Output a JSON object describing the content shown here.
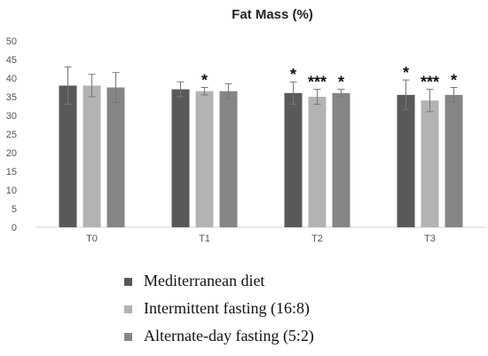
{
  "chart_data": {
    "type": "bar",
    "title": "Fat Mass (%)",
    "xlabel": "",
    "ylabel": "",
    "ylim": [
      0,
      50
    ],
    "yticks": [
      0,
      5,
      10,
      15,
      20,
      25,
      30,
      35,
      40,
      45,
      50
    ],
    "grid": false,
    "legend_position": "bottom",
    "categories": [
      "T0",
      "T1",
      "T2",
      "T3"
    ],
    "series": [
      {
        "name": "Mediterranean diet",
        "color": "#595959",
        "values": [
          38,
          37,
          36,
          35.5
        ],
        "errors": [
          5,
          2,
          3,
          4
        ],
        "significance": [
          "",
          "",
          "*",
          "*"
        ]
      },
      {
        "name": "Intermittent fasting (16:8)",
        "color": "#b3b3b3",
        "values": [
          38,
          36.5,
          35,
          34
        ],
        "errors": [
          3,
          1,
          2,
          3
        ],
        "significance": [
          "",
          "*",
          "***",
          "***"
        ]
      },
      {
        "name": "Alternate-day fasting (5:2)",
        "color": "#858585",
        "values": [
          37.5,
          36.5,
          36,
          35.5
        ],
        "errors": [
          4,
          2,
          1,
          2
        ],
        "significance": [
          "",
          "",
          "*",
          "*"
        ]
      }
    ]
  }
}
